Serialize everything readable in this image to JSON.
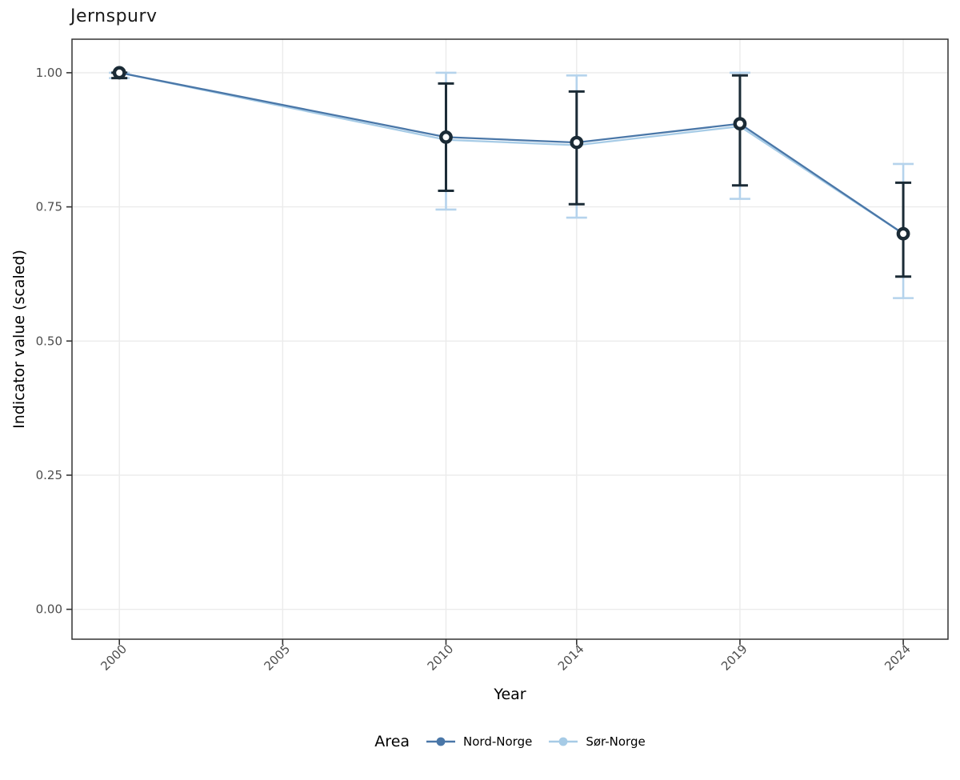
{
  "chart_data": {
    "type": "line",
    "title": "Jernspurv",
    "xlabel": "Year",
    "ylabel": "Indicator value (scaled)",
    "x_ticks": [
      2000,
      2005,
      2010,
      2014,
      2019,
      2024
    ],
    "x_tick_labels": [
      "2000",
      "2005",
      "2010",
      "2014",
      "2019",
      "2024"
    ],
    "y_ticks": [
      0,
      0.25,
      0.5,
      0.75,
      1
    ],
    "y_tick_labels": [
      "0.00",
      "0.25",
      "0.50",
      "0.75",
      "1.00"
    ],
    "x_domain": [
      1998.55,
      2025.37
    ],
    "y_domain": [
      -0.0557,
      1.0625
    ],
    "grid": true,
    "legend": {
      "title": "Area",
      "position": "bottom"
    },
    "series": [
      {
        "name": "Nord-Norge",
        "color": "#4a77a8",
        "errorbar_color": "#1b2b36",
        "x": [
          2000,
          2010,
          2014,
          2019,
          2024
        ],
        "values": [
          1.0,
          0.88,
          0.87,
          0.905,
          0.7
        ],
        "ci_low": [
          0.99,
          0.78,
          0.755,
          0.79,
          0.62
        ],
        "ci_high": [
          1.0,
          0.98,
          0.965,
          0.995,
          0.795
        ]
      },
      {
        "name": "Sør-Norge",
        "color": "#a6cbe6",
        "errorbar_color": "#b5d3ec",
        "x": [
          2000,
          2010,
          2014,
          2019,
          2024
        ],
        "values": [
          1.0,
          0.875,
          0.865,
          0.9,
          0.7
        ],
        "ci_low": [
          0.99,
          0.745,
          0.73,
          0.765,
          0.58
        ],
        "ci_high": [
          1.0,
          1.0,
          0.995,
          1.0,
          0.83
        ]
      }
    ],
    "point_style": {
      "shape": "open-circle",
      "ring_color": "#1b2b36",
      "fill": "#ffffff"
    },
    "panel_style": {
      "background": "#ffffff",
      "border_color": "#333333",
      "grid_color": "#ebebeb",
      "tick_color": "#333333",
      "tick_label_color": "#4d4d4d"
    }
  }
}
